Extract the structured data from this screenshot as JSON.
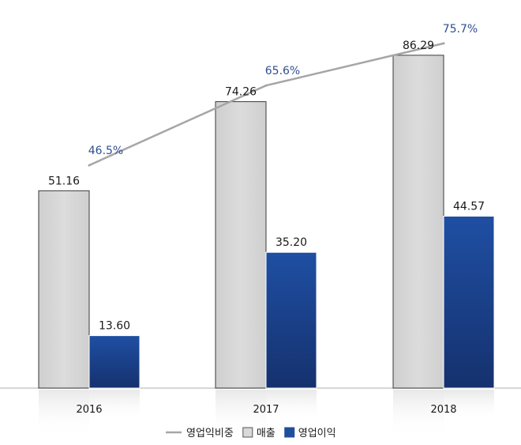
{
  "chart_data": {
    "type": "bar",
    "categories": [
      "2016",
      "2017",
      "2018"
    ],
    "series": [
      {
        "name": "매출",
        "type": "bar",
        "values": [
          51.16,
          74.26,
          86.29
        ],
        "labels": [
          "51.16",
          "74.26",
          "86.29"
        ]
      },
      {
        "name": "영업이익",
        "type": "bar",
        "values": [
          13.6,
          35.2,
          44.57
        ],
        "labels": [
          "13.60",
          "35.20",
          "44.57"
        ]
      },
      {
        "name": "영업익비중",
        "type": "line",
        "values": [
          46.5,
          65.6,
          75.7
        ],
        "labels": [
          "46.5%",
          "65.6%",
          "75.7%"
        ]
      }
    ],
    "ylim": [
      0,
      90
    ],
    "line_ylim": [
      0,
      90
    ],
    "grid": false,
    "legend_position": "bottom",
    "colors": {
      "sales": "#d9d9d9",
      "profit": "#1f4e9c",
      "line": "#a6a6a6",
      "pct_label": "#2f4f8f"
    }
  },
  "legend": {
    "items": [
      {
        "label": "영업익비중",
        "kind": "line"
      },
      {
        "label": "매출",
        "kind": "bar-gray"
      },
      {
        "label": "영업이익",
        "kind": "bar-blue"
      }
    ]
  }
}
